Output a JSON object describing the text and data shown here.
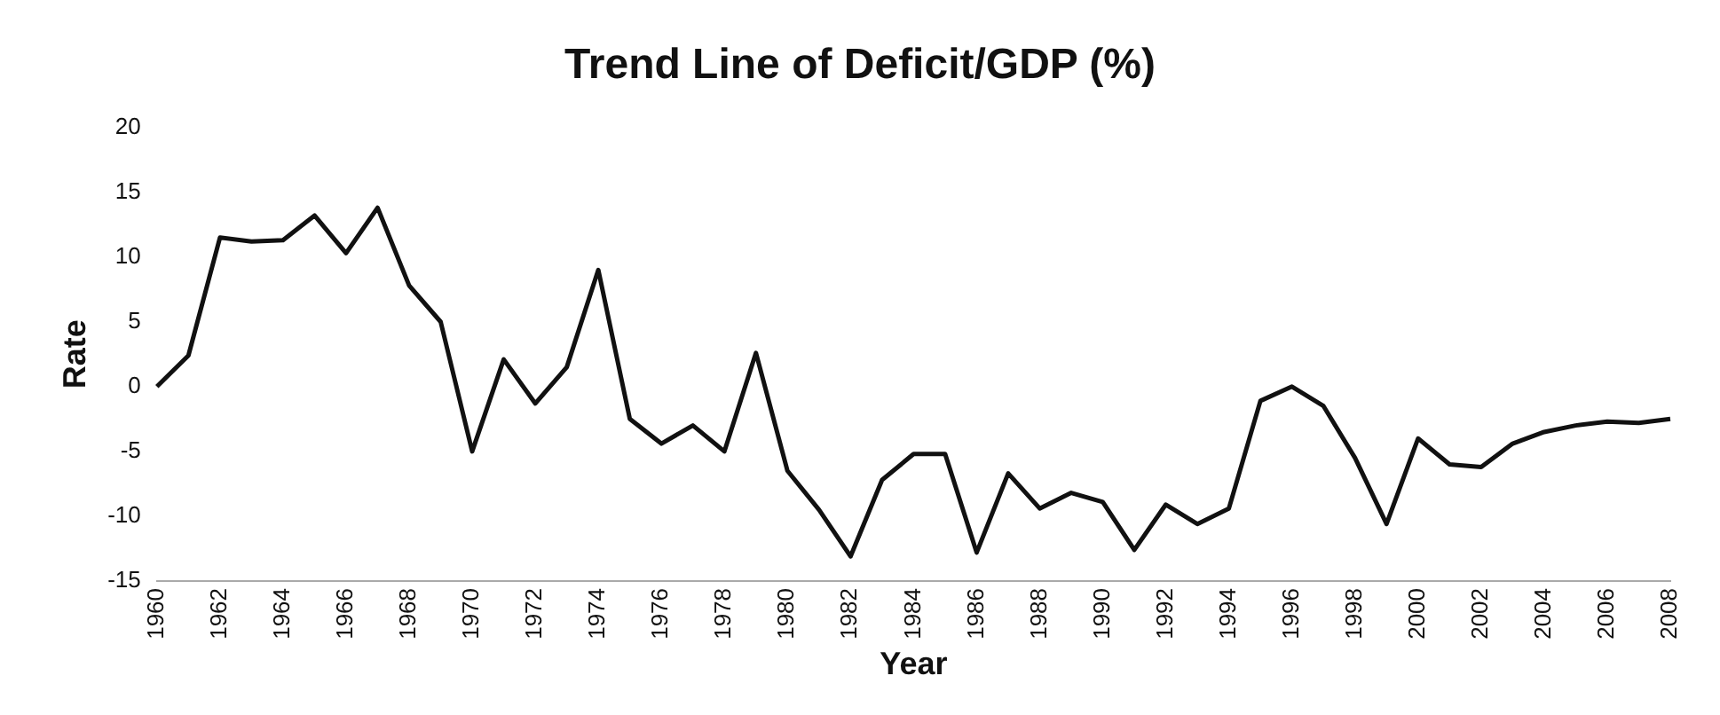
{
  "chart_data": {
    "type": "line",
    "title": "Trend Line of Deficit/GDP (%)",
    "xlabel": "Year",
    "ylabel": "Rate",
    "categories": [
      "1960",
      null,
      "1962",
      null,
      "1964",
      null,
      "1966",
      null,
      "1968",
      null,
      "1970",
      null,
      "1972",
      null,
      "1974",
      null,
      "1976",
      null,
      "1978",
      null,
      "1980",
      null,
      "1982",
      null,
      "1984",
      null,
      "1986",
      null,
      "1988",
      null,
      "1990",
      null,
      "1992",
      null,
      "1994",
      null,
      "1996",
      null,
      "1998",
      null,
      "2000",
      null,
      "2002",
      null,
      "2004",
      null,
      "2006",
      null,
      "2008"
    ],
    "series": [
      {
        "color": "#111111",
        "values": [
          0,
          2.4,
          11.5,
          11.2,
          11.3,
          13.2,
          10.3,
          13.8,
          7.8,
          5,
          -5,
          2.1,
          -1.3,
          1.5,
          9,
          -2.5,
          -4.4,
          -3,
          -5,
          2.6,
          -6.5,
          -9.5,
          -13.1,
          -7.2,
          -5.2,
          -5.2,
          -12.8,
          -6.7,
          -9.4,
          -8.2,
          -8.9,
          -12.6,
          -9.1,
          -10.6,
          -9.4,
          -1.1,
          0,
          -1.5,
          -5.5,
          -10.6,
          -4,
          -6,
          -6.2,
          -4.4,
          -3.5,
          -3,
          -2.7,
          -2.8,
          -2.5
        ]
      }
    ],
    "ylim": [
      -15,
      20
    ],
    "yticks": [
      -15,
      -10,
      -5,
      0,
      5,
      10,
      15,
      20
    ],
    "grid": false,
    "legend": false,
    "marker": "none",
    "line_style": "solid"
  }
}
